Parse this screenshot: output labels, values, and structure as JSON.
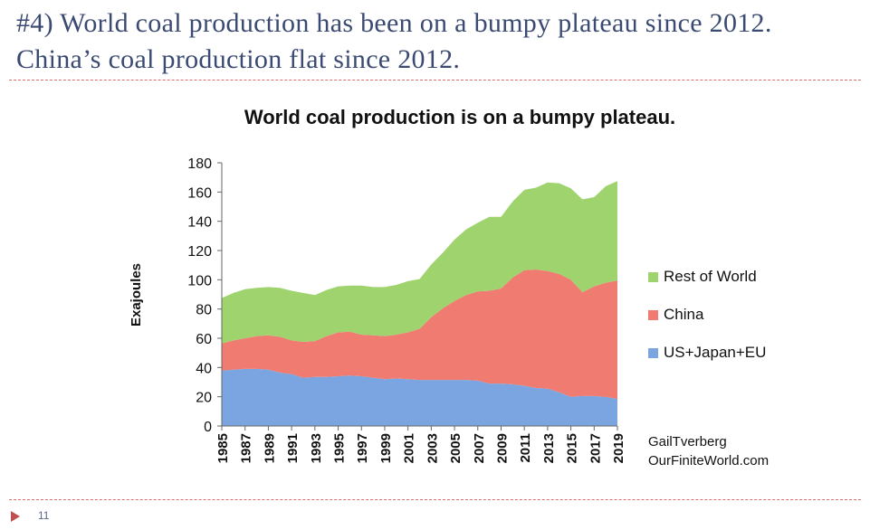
{
  "slide": {
    "title": "#4) World coal production has been on a bumpy plateau since 2012. China’s coal production flat since 2012.",
    "page_number": "11"
  },
  "credit": {
    "line1": "GailTverberg",
    "line2": "OurFiniteWorld.com"
  },
  "colors": {
    "rest_of_world": "#9fd36e",
    "china": "#ef7b71",
    "us_japan_eu": "#7aa5e0",
    "divider": "#d86b6b"
  },
  "chart_data": {
    "type": "area",
    "stacked": true,
    "title": "World coal production is on a bumpy plateau.",
    "ylabel": "Exajoules",
    "xlabel": "",
    "ylim": [
      0,
      180
    ],
    "yticks": [
      0,
      20,
      40,
      60,
      80,
      100,
      120,
      140,
      160,
      180
    ],
    "x": [
      1985,
      1986,
      1987,
      1988,
      1989,
      1990,
      1991,
      1992,
      1993,
      1994,
      1995,
      1996,
      1997,
      1998,
      1999,
      2000,
      2001,
      2002,
      2003,
      2004,
      2005,
      2006,
      2007,
      2008,
      2009,
      2010,
      2011,
      2012,
      2013,
      2014,
      2015,
      2016,
      2017,
      2018,
      2019
    ],
    "xticks": [
      1985,
      1987,
      1989,
      1991,
      1993,
      1995,
      1997,
      1999,
      2001,
      2003,
      2005,
      2007,
      2009,
      2011,
      2013,
      2015,
      2017,
      2019
    ],
    "grid": false,
    "legend_position": "right",
    "series": [
      {
        "name": "US+Japan+EU",
        "values": [
          38,
          38.5,
          39,
          39,
          38.5,
          36.5,
          35.5,
          33,
          33.5,
          33.5,
          34,
          34.5,
          34,
          33,
          32,
          32.5,
          32,
          31.5,
          31.5,
          31.5,
          31.5,
          31.5,
          31,
          29,
          29,
          28.5,
          27.5,
          26,
          25.5,
          23,
          20,
          20.5,
          20.5,
          20,
          18.5
        ]
      },
      {
        "name": "China",
        "values": [
          18.5,
          20,
          21,
          22.5,
          23.5,
          24.5,
          23,
          24.5,
          24.5,
          28,
          30,
          30,
          28.5,
          29,
          29.5,
          30,
          32,
          35,
          43,
          49,
          54,
          58,
          61,
          63.5,
          65,
          73,
          79,
          81,
          80.5,
          81,
          80,
          71,
          75,
          78,
          81
        ]
      },
      {
        "name": "Rest of World",
        "values": [
          31,
          32.5,
          33.5,
          33,
          33,
          33.5,
          34,
          33.5,
          31.5,
          31.5,
          31.5,
          31.5,
          33.5,
          33,
          33.5,
          34,
          35,
          34,
          36,
          38,
          42,
          45,
          47,
          50.5,
          49,
          52,
          55,
          56,
          60.5,
          62,
          62.5,
          63.5,
          61,
          66,
          68
        ]
      }
    ]
  }
}
